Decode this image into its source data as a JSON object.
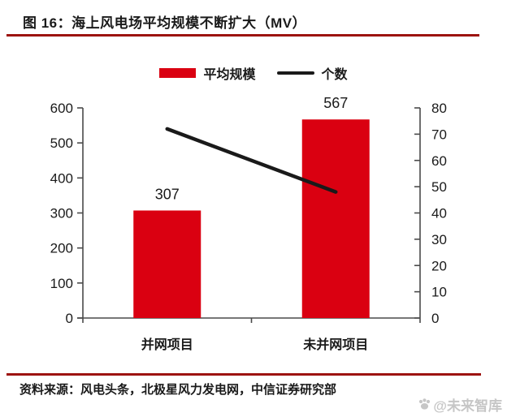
{
  "header": {
    "title": "图 16：海上风电场平均规模不断扩大（MV）"
  },
  "legend": [
    {
      "label": "平均规模",
      "swatch": "bar-swatch",
      "color": "#da0011"
    },
    {
      "label": "个数",
      "swatch": "line-swatch",
      "color": "#1a1a1a"
    }
  ],
  "chart_data": {
    "type": "bar",
    "title": "海上风电场平均规模不断扩大（MV）",
    "categories": [
      "并网项目",
      "未并网项目"
    ],
    "series": [
      {
        "name": "平均规模",
        "type": "bar",
        "axis": "left",
        "values": [
          307,
          567
        ],
        "color": "#da0011"
      },
      {
        "name": "个数",
        "type": "line",
        "axis": "right",
        "values": [
          72,
          48
        ],
        "color": "#1a1a1a"
      }
    ],
    "bar_value_labels": [
      "307",
      "567"
    ],
    "left_axis": {
      "min": 0,
      "max": 600,
      "step": 100,
      "ticks": [
        0,
        100,
        200,
        300,
        400,
        500,
        600
      ]
    },
    "right_axis": {
      "min": 0,
      "max": 80,
      "step": 10,
      "ticks": [
        0,
        10,
        20,
        30,
        40,
        50,
        60,
        70,
        80
      ]
    },
    "grid": false,
    "legend_position": "top"
  },
  "footer": {
    "source": "资料来源：风电头条，北极星风力发电网，中信证券研究部",
    "watermark": "@未来智库"
  },
  "colors": {
    "bar": "#da0011",
    "line": "#1a1a1a",
    "accent_rule": "#9d1310",
    "axis": "#4a4a4a",
    "text": "#1a1a1a",
    "watermark": "#c6c6c6"
  }
}
